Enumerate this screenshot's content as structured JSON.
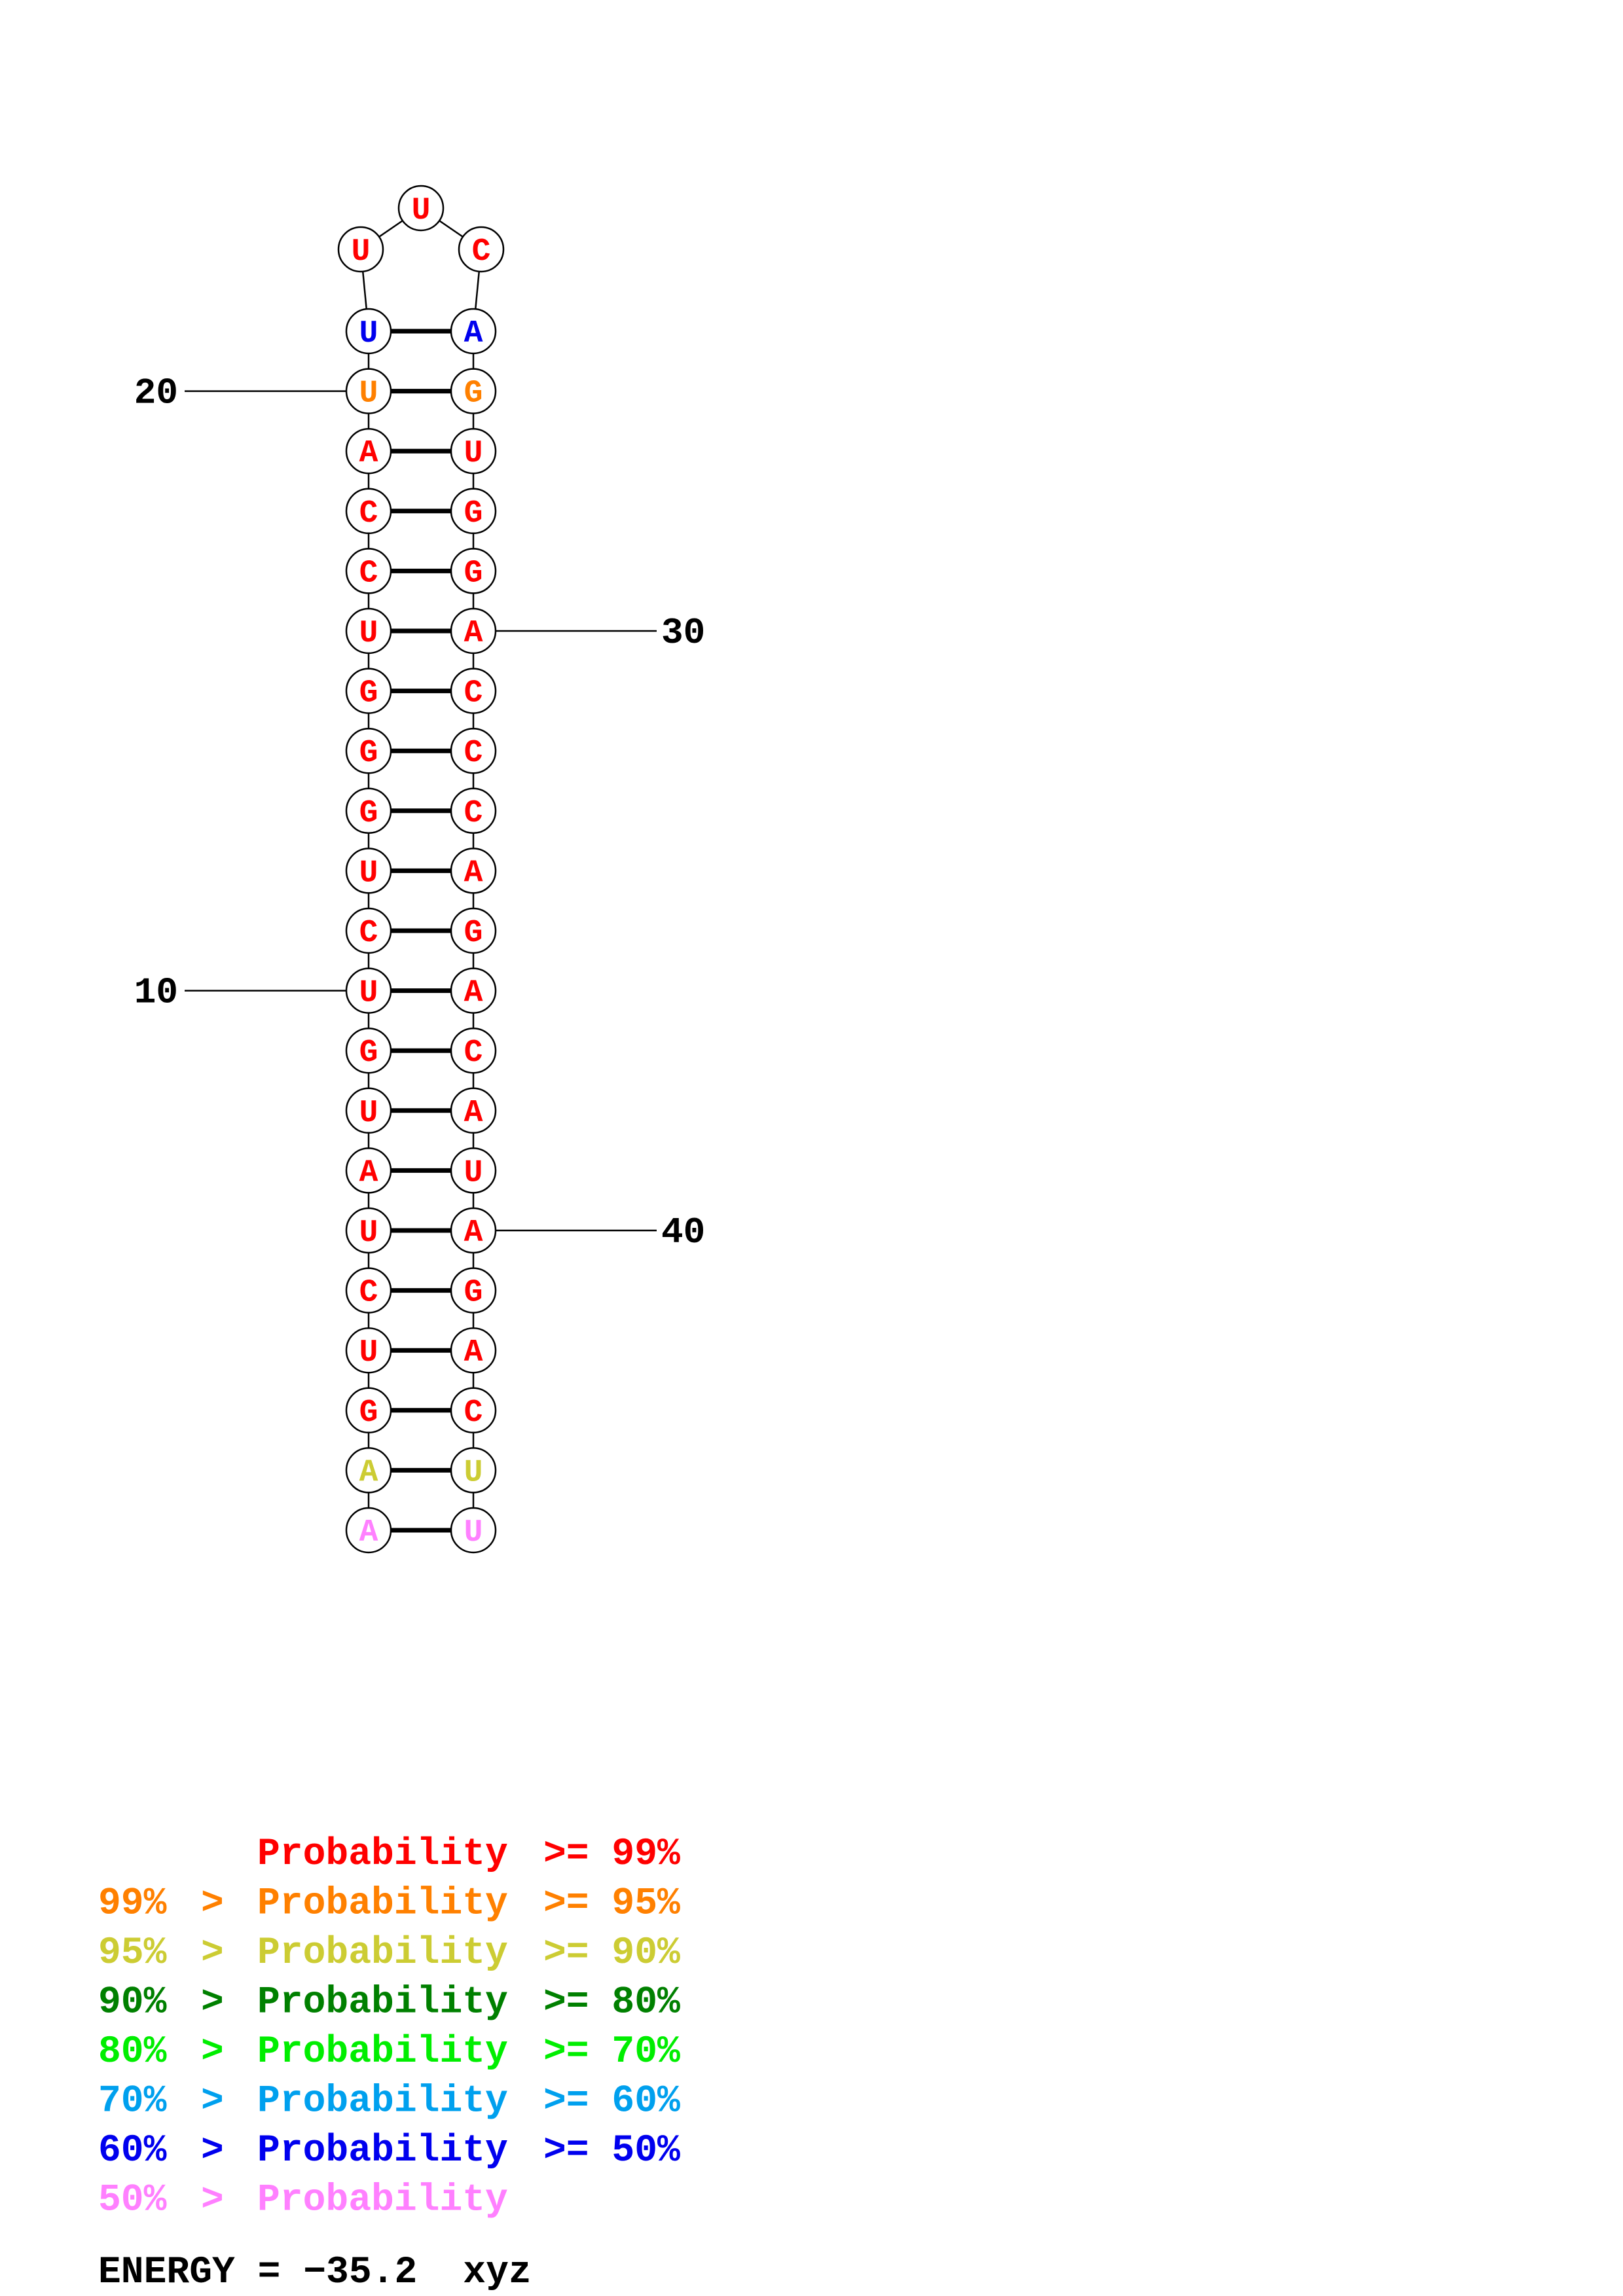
{
  "colors": {
    "red": "#ff0000",
    "orange": "#ff8000",
    "yellow": "#cccc33",
    "darkgreen": "#008000",
    "green": "#00ee00",
    "cyan": "#00a0ee",
    "blue": "#0000ee",
    "pink": "#ff80ff"
  },
  "nucleotides": [
    {
      "index": 1,
      "base": "A",
      "color": "pink"
    },
    {
      "index": 2,
      "base": "A",
      "color": "yellow"
    },
    {
      "index": 3,
      "base": "G",
      "color": "red"
    },
    {
      "index": 4,
      "base": "U",
      "color": "red"
    },
    {
      "index": 5,
      "base": "C",
      "color": "red"
    },
    {
      "index": 6,
      "base": "U",
      "color": "red"
    },
    {
      "index": 7,
      "base": "A",
      "color": "red"
    },
    {
      "index": 8,
      "base": "U",
      "color": "red"
    },
    {
      "index": 9,
      "base": "G",
      "color": "red"
    },
    {
      "index": 10,
      "base": "U",
      "color": "red"
    },
    {
      "index": 11,
      "base": "C",
      "color": "red"
    },
    {
      "index": 12,
      "base": "U",
      "color": "red"
    },
    {
      "index": 13,
      "base": "G",
      "color": "red"
    },
    {
      "index": 14,
      "base": "G",
      "color": "red"
    },
    {
      "index": 15,
      "base": "G",
      "color": "red"
    },
    {
      "index": 16,
      "base": "U",
      "color": "red"
    },
    {
      "index": 17,
      "base": "C",
      "color": "red"
    },
    {
      "index": 18,
      "base": "C",
      "color": "red"
    },
    {
      "index": 19,
      "base": "A",
      "color": "red"
    },
    {
      "index": 20,
      "base": "U",
      "color": "orange"
    },
    {
      "index": 21,
      "base": "U",
      "color": "blue"
    },
    {
      "index": 22,
      "base": "U",
      "color": "red"
    },
    {
      "index": 23,
      "base": "U",
      "color": "red"
    },
    {
      "index": 24,
      "base": "C",
      "color": "red"
    },
    {
      "index": 25,
      "base": "A",
      "color": "blue"
    },
    {
      "index": 26,
      "base": "G",
      "color": "orange"
    },
    {
      "index": 27,
      "base": "U",
      "color": "red"
    },
    {
      "index": 28,
      "base": "G",
      "color": "red"
    },
    {
      "index": 29,
      "base": "G",
      "color": "red"
    },
    {
      "index": 30,
      "base": "A",
      "color": "red"
    },
    {
      "index": 31,
      "base": "C",
      "color": "red"
    },
    {
      "index": 32,
      "base": "C",
      "color": "red"
    },
    {
      "index": 33,
      "base": "C",
      "color": "red"
    },
    {
      "index": 34,
      "base": "A",
      "color": "red"
    },
    {
      "index": 35,
      "base": "G",
      "color": "red"
    },
    {
      "index": 36,
      "base": "A",
      "color": "red"
    },
    {
      "index": 37,
      "base": "C",
      "color": "red"
    },
    {
      "index": 38,
      "base": "A",
      "color": "red"
    },
    {
      "index": 39,
      "base": "U",
      "color": "red"
    },
    {
      "index": 40,
      "base": "A",
      "color": "red"
    },
    {
      "index": 41,
      "base": "G",
      "color": "red"
    },
    {
      "index": 42,
      "base": "A",
      "color": "red"
    },
    {
      "index": 43,
      "base": "C",
      "color": "red"
    },
    {
      "index": 44,
      "base": "U",
      "color": "yellow"
    },
    {
      "index": 45,
      "base": "U",
      "color": "pink"
    }
  ],
  "position_labels": [
    {
      "index": 10,
      "text": "10"
    },
    {
      "index": 20,
      "text": "20"
    },
    {
      "index": 30,
      "text": "30"
    },
    {
      "index": 40,
      "text": "40"
    }
  ],
  "legend": [
    {
      "left": "",
      "mid": "",
      "word": "Probability",
      "right": ">= 99%",
      "color": "red"
    },
    {
      "left": "99%",
      "mid": ">",
      "word": "Probability",
      "right": ">= 95%",
      "color": "orange"
    },
    {
      "left": "95%",
      "mid": ">",
      "word": "Probability",
      "right": ">= 90%",
      "color": "yellow"
    },
    {
      "left": "90%",
      "mid": ">",
      "word": "Probability",
      "right": ">= 80%",
      "color": "darkgreen"
    },
    {
      "left": "80%",
      "mid": ">",
      "word": "Probability",
      "right": ">= 70%",
      "color": "green"
    },
    {
      "left": "70%",
      "mid": ">",
      "word": "Probability",
      "right": ">= 60%",
      "color": "cyan"
    },
    {
      "left": "60%",
      "mid": ">",
      "word": "Probability",
      "right": ">= 50%",
      "color": "blue"
    },
    {
      "left": "50%",
      "mid": ">",
      "word": "Probability",
      "right": "",
      "color": "pink"
    }
  ],
  "energy": {
    "label": "ENERGY = −35.2",
    "name": "xyz"
  }
}
